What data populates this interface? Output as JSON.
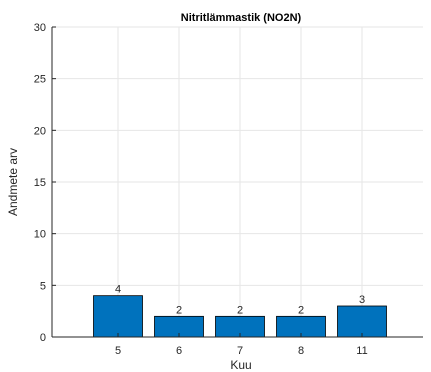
{
  "chart_data": {
    "type": "bar",
    "title": "Nitritlämmastik (NO2N)",
    "xlabel": "Kuu",
    "ylabel": "Andmete arv",
    "categories": [
      "5",
      "6",
      "7",
      "8",
      "11"
    ],
    "values": [
      4,
      2,
      2,
      2,
      3
    ],
    "data_labels": [
      "4",
      "2",
      "2",
      "2",
      "3"
    ],
    "ylim": [
      0,
      30
    ],
    "yticks": [
      0,
      5,
      10,
      15,
      20,
      25,
      30
    ],
    "ytick_labels": [
      "0",
      "5",
      "10",
      "15",
      "20",
      "25",
      "30"
    ],
    "grid": true,
    "legend": "none",
    "colors": {
      "bar_fill": "#0072BD",
      "bar_edge": "#000000",
      "grid": "#e6e6e6",
      "axis": "#262626"
    }
  }
}
